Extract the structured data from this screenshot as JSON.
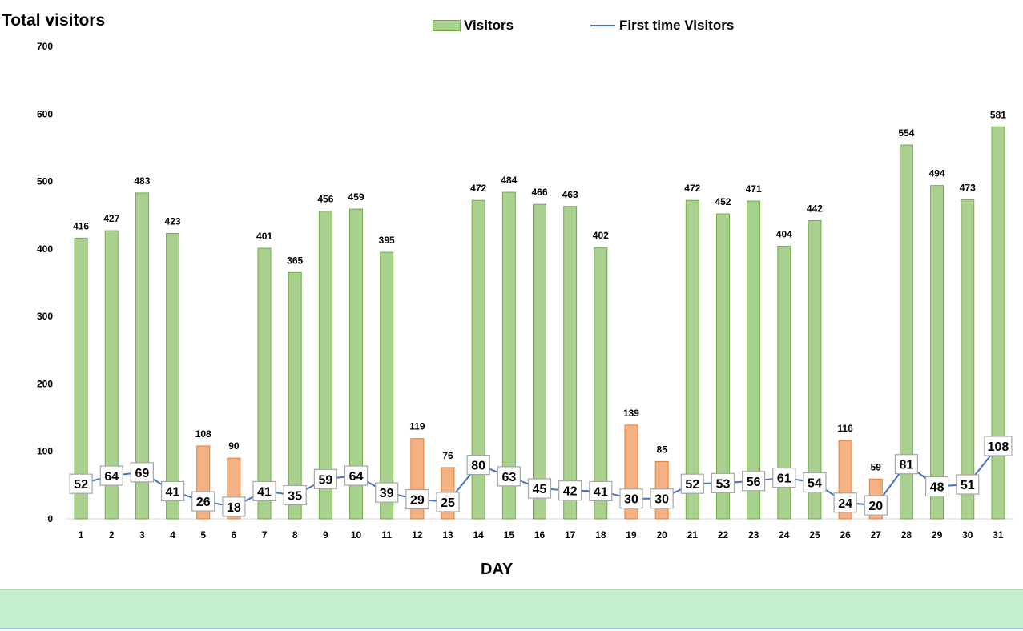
{
  "chart_data": {
    "type": "bar",
    "ylabel": "Total visitors",
    "xlabel": "DAY",
    "ylim": [
      0,
      700
    ],
    "yticks": [
      0,
      100,
      200,
      300,
      400,
      500,
      600,
      700
    ],
    "legend": {
      "placement": "top",
      "entries": [
        "Visitors",
        "First time Visitors"
      ]
    },
    "categories": [
      "1",
      "2",
      "3",
      "4",
      "5",
      "6",
      "7",
      "8",
      "9",
      "10",
      "11",
      "12",
      "13",
      "14",
      "15",
      "16",
      "17",
      "18",
      "19",
      "20",
      "21",
      "22",
      "23",
      "24",
      "25",
      "26",
      "27",
      "28",
      "29",
      "30",
      "31"
    ],
    "series": [
      {
        "name": "Visitors",
        "kind": "bar",
        "color": "#a9d08e",
        "edge_color": "#70ad47",
        "values": [
          416,
          427,
          483,
          423,
          108,
          90,
          401,
          365,
          456,
          459,
          395,
          119,
          76,
          472,
          484,
          466,
          463,
          402,
          139,
          85,
          472,
          452,
          471,
          404,
          442,
          116,
          59,
          554,
          494,
          473,
          581
        ]
      },
      {
        "name": "First time Visitors",
        "kind": "line",
        "color": "#4472c4",
        "values": [
          52,
          64,
          69,
          41,
          26,
          18,
          41,
          35,
          59,
          64,
          39,
          29,
          25,
          80,
          63,
          45,
          42,
          41,
          30,
          30,
          52,
          53,
          56,
          61,
          54,
          24,
          20,
          81,
          48,
          51,
          108
        ]
      }
    ],
    "highlighted_days": [
      "5",
      "6",
      "12",
      "13",
      "19",
      "20",
      "26",
      "27"
    ],
    "highlight_color": "#f4b183",
    "highlight_edge_color": "#ed7d31"
  }
}
